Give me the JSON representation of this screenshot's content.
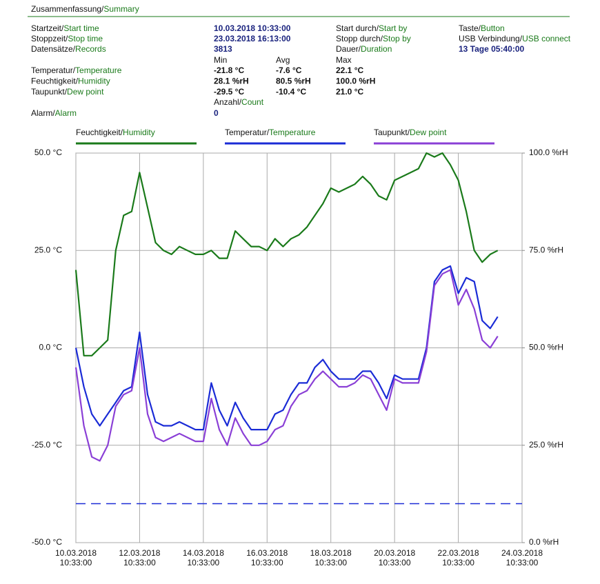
{
  "summary": {
    "title": "Zusammenfassung/Summary",
    "start_time": {
      "label": "Startzeit/Start time",
      "value": "10.03.2018 10:33:00"
    },
    "stop_time": {
      "label": "Stoppzeit/Stop time",
      "value": "23.03.2018 16:13:00"
    },
    "records": {
      "label": "Datensätze/Records",
      "value": "3813"
    },
    "start_by": {
      "label": "Start durch/Start by",
      "value": "Taste/Button"
    },
    "stop_by": {
      "label": "Stopp durch/Stop by",
      "value": "USB Verbindung/USB connect"
    },
    "duration": {
      "label": "Dauer/Duration",
      "value": "13 Tage 05:40:00"
    },
    "stats": {
      "headers": [
        "Min",
        "Avg",
        "Max"
      ],
      "rows": [
        {
          "label": "Temperatur/Temperature",
          "values": [
            "-21.8 °C",
            "-7.6 °C",
            "22.1 °C"
          ],
          "color": "#1a2bd6"
        },
        {
          "label": "Feuchtigkeit/Humidity",
          "values": [
            "28.1 %rH",
            "80.5 %rH",
            "100.0 %rH"
          ],
          "color": "#1a7a1a"
        },
        {
          "label": "Taupunkt/Dew point",
          "values": [
            "-29.5 °C",
            "-10.4 °C",
            "21.0 °C"
          ],
          "color": "#8a3fd6"
        }
      ]
    },
    "count_header": "Anzahl/Count",
    "alarm": {
      "label": "Alarm/Alarm",
      "value": "0"
    }
  },
  "chart_data": {
    "type": "line",
    "x": [
      "2018-03-10T10:33:00",
      "2018-03-10T16:33:00",
      "2018-03-10T22:33:00",
      "2018-03-11T04:33:00",
      "2018-03-11T10:33:00",
      "2018-03-11T16:33:00",
      "2018-03-11T22:33:00",
      "2018-03-12T04:33:00",
      "2018-03-12T10:33:00",
      "2018-03-12T16:33:00",
      "2018-03-12T22:33:00",
      "2018-03-13T04:33:00",
      "2018-03-13T10:33:00",
      "2018-03-13T16:33:00",
      "2018-03-13T22:33:00",
      "2018-03-14T04:33:00",
      "2018-03-14T10:33:00",
      "2018-03-14T16:33:00",
      "2018-03-14T22:33:00",
      "2018-03-15T04:33:00",
      "2018-03-15T10:33:00",
      "2018-03-15T16:33:00",
      "2018-03-15T22:33:00",
      "2018-03-16T04:33:00",
      "2018-03-16T10:33:00",
      "2018-03-16T16:33:00",
      "2018-03-16T22:33:00",
      "2018-03-17T04:33:00",
      "2018-03-17T10:33:00",
      "2018-03-17T16:33:00",
      "2018-03-17T22:33:00",
      "2018-03-18T04:33:00",
      "2018-03-18T10:33:00",
      "2018-03-18T16:33:00",
      "2018-03-18T22:33:00",
      "2018-03-19T04:33:00",
      "2018-03-19T10:33:00",
      "2018-03-19T16:33:00",
      "2018-03-19T22:33:00",
      "2018-03-20T04:33:00",
      "2018-03-20T10:33:00",
      "2018-03-20T16:33:00",
      "2018-03-20T22:33:00",
      "2018-03-21T04:33:00",
      "2018-03-21T10:33:00",
      "2018-03-21T16:33:00",
      "2018-03-21T22:33:00",
      "2018-03-22T04:33:00",
      "2018-03-22T10:33:00",
      "2018-03-22T16:33:00",
      "2018-03-22T22:33:00",
      "2018-03-23T04:33:00",
      "2018-03-23T10:33:00",
      "2018-03-23T16:13:00"
    ],
    "series": [
      {
        "name": "Feuchtigkeit/Humidity",
        "color": "#1a7a1a",
        "axis": "y2",
        "values": [
          70,
          48,
          48,
          50,
          52,
          75,
          84,
          85,
          95,
          86,
          77,
          75,
          74,
          76,
          75,
          74,
          74,
          75,
          73,
          73,
          80,
          78,
          76,
          76,
          75,
          78,
          76,
          78,
          79,
          81,
          84,
          87,
          91,
          90,
          91,
          92,
          94,
          92,
          89,
          88,
          93,
          94,
          95,
          96,
          100,
          99,
          100,
          97,
          93,
          85,
          75,
          72,
          74,
          75
        ]
      },
      {
        "name": "Temperatur/Temperature",
        "color": "#1a2bd6",
        "values": [
          0,
          -10,
          -17,
          -20,
          -17,
          -14,
          -11,
          -10,
          4,
          -12,
          -19,
          -20,
          -20,
          -19,
          -20,
          -21,
          -21,
          -9,
          -16,
          -20,
          -14,
          -18,
          -21,
          -21,
          -21,
          -17,
          -16,
          -12,
          -9,
          -9,
          -5,
          -3,
          -6,
          -8,
          -8,
          -8,
          -6,
          -6,
          -9,
          -13,
          -7,
          -8,
          -8,
          -8,
          0,
          17,
          20,
          21,
          14,
          18,
          17,
          7,
          5,
          8
        ]
      },
      {
        "name": "Taupunkt/Dew point",
        "color": "#8a3fd6",
        "values": [
          -5,
          -20,
          -28,
          -29,
          -25,
          -15,
          -12,
          -11,
          0,
          -17,
          -23,
          -24,
          -23,
          -22,
          -23,
          -24,
          -24,
          -13,
          -21,
          -25,
          -18,
          -22,
          -25,
          -25,
          -24,
          -21,
          -20,
          -15,
          -12,
          -11,
          -8,
          -6,
          -8,
          -10,
          -10,
          -9,
          -7,
          -8,
          -12,
          -16,
          -8,
          -9,
          -9,
          -9,
          -1,
          16,
          19,
          20,
          11,
          15,
          10,
          2,
          0,
          3
        ]
      }
    ],
    "xlim": [
      "2018-03-10T10:33:00",
      "2018-03-24T10:33:00"
    ],
    "xticks": [
      {
        "value": "2018-03-10T10:33:00",
        "label": "10.03.2018 10:33:00"
      },
      {
        "value": "2018-03-12T10:33:00",
        "label": "12.03.2018 10:33:00"
      },
      {
        "value": "2018-03-14T10:33:00",
        "label": "14.03.2018 10:33:00"
      },
      {
        "value": "2018-03-16T10:33:00",
        "label": "16.03.2018 10:33:00"
      },
      {
        "value": "2018-03-18T10:33:00",
        "label": "18.03.2018 10:33:00"
      },
      {
        "value": "2018-03-20T10:33:00",
        "label": "20.03.2018 10:33:00"
      },
      {
        "value": "2018-03-22T10:33:00",
        "label": "22.03.2018 10:33:00"
      },
      {
        "value": "2018-03-24T10:33:00",
        "label": "24.03.2018 10:33:00"
      }
    ],
    "ylim": [
      -50,
      50
    ],
    "yticks": [
      {
        "value": -50,
        "label": "-50.0 °C"
      },
      {
        "value": -25,
        "label": "-25.0 °C"
      },
      {
        "value": 0,
        "label": "0.0 °C"
      },
      {
        "value": 25,
        "label": "25.0 °C"
      },
      {
        "value": 50,
        "label": "50.0 °C"
      }
    ],
    "y2lim": [
      0,
      100
    ],
    "y2ticks": [
      {
        "value": 0,
        "label": "0.0 %rH"
      },
      {
        "value": 25,
        "label": "25.0 %rH"
      },
      {
        "value": 50,
        "label": "50.0 %rH"
      },
      {
        "value": 75,
        "label": "75.0 %rH"
      },
      {
        "value": 100,
        "label": "100.0 %rH"
      }
    ],
    "y_color": "#1a2bd6",
    "y2_color": "#1a7a1a",
    "alarm_line": {
      "value": -40,
      "color": "#1a2bd6"
    },
    "grid": true
  }
}
